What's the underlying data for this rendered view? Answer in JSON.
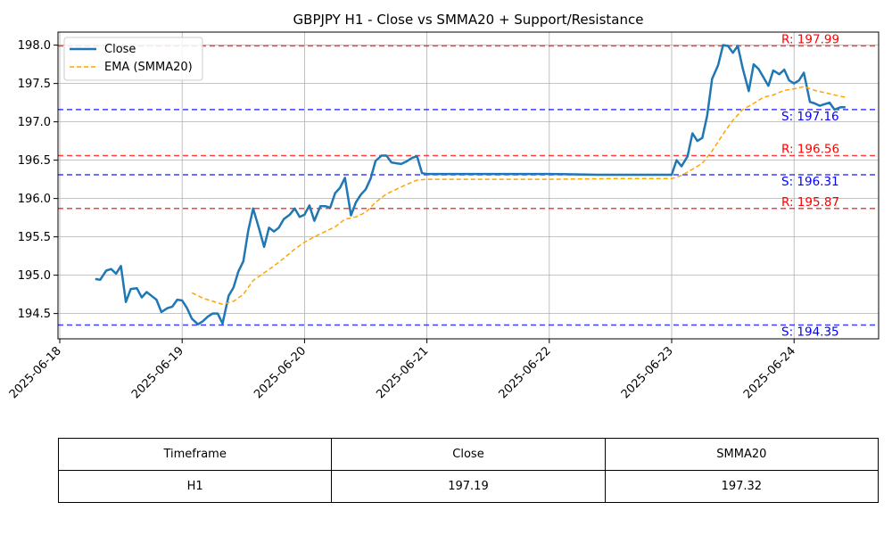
{
  "chart_data": {
    "type": "line",
    "title": "GBPJPY H1 - Close vs SMMA20 + Support/Resistance",
    "xlabel": "",
    "ylabel": "",
    "x_ticks": [
      "2025-06-18",
      "2025-06-19",
      "2025-06-20",
      "2025-06-21",
      "2025-06-22",
      "2025-06-23",
      "2025-06-24"
    ],
    "y_ticks": [
      "194.5",
      "195.0",
      "195.5",
      "196.0",
      "196.5",
      "197.0",
      "197.5",
      "198.0"
    ],
    "xlim": [
      0,
      6.72
    ],
    "ylim": [
      194.17,
      198.17
    ],
    "grid": true,
    "legend_position": "top-left",
    "series": [
      {
        "name": "Close",
        "color": "#1f77b4",
        "style": "solid",
        "points": [
          [
            0.29,
            194.95
          ],
          [
            0.33,
            194.94
          ],
          [
            0.38,
            195.06
          ],
          [
            0.42,
            195.08
          ],
          [
            0.46,
            195.02
          ],
          [
            0.5,
            195.12
          ],
          [
            0.54,
            194.65
          ],
          [
            0.58,
            194.82
          ],
          [
            0.63,
            194.83
          ],
          [
            0.67,
            194.71
          ],
          [
            0.71,
            194.78
          ],
          [
            0.75,
            194.73
          ],
          [
            0.79,
            194.68
          ],
          [
            0.83,
            194.52
          ],
          [
            0.88,
            194.57
          ],
          [
            0.92,
            194.59
          ],
          [
            0.96,
            194.68
          ],
          [
            1.0,
            194.67
          ],
          [
            1.04,
            194.57
          ],
          [
            1.08,
            194.43
          ],
          [
            1.13,
            194.36
          ],
          [
            1.17,
            194.4
          ],
          [
            1.21,
            194.46
          ],
          [
            1.25,
            194.5
          ],
          [
            1.29,
            194.5
          ],
          [
            1.33,
            194.37
          ],
          [
            1.38,
            194.73
          ],
          [
            1.42,
            194.84
          ],
          [
            1.46,
            195.05
          ],
          [
            1.5,
            195.18
          ],
          [
            1.54,
            195.58
          ],
          [
            1.58,
            195.87
          ],
          [
            1.63,
            195.6
          ],
          [
            1.67,
            195.37
          ],
          [
            1.71,
            195.62
          ],
          [
            1.75,
            195.57
          ],
          [
            1.79,
            195.62
          ],
          [
            1.83,
            195.73
          ],
          [
            1.88,
            195.79
          ],
          [
            1.92,
            195.87
          ],
          [
            1.96,
            195.76
          ],
          [
            2.0,
            195.79
          ],
          [
            2.04,
            195.91
          ],
          [
            2.08,
            195.71
          ],
          [
            2.13,
            195.9
          ],
          [
            2.17,
            195.9
          ],
          [
            2.21,
            195.88
          ],
          [
            2.25,
            196.07
          ],
          [
            2.29,
            196.14
          ],
          [
            2.33,
            196.27
          ],
          [
            2.38,
            195.78
          ],
          [
            2.42,
            195.95
          ],
          [
            2.46,
            196.05
          ],
          [
            2.5,
            196.12
          ],
          [
            2.54,
            196.26
          ],
          [
            2.58,
            196.49
          ],
          [
            2.63,
            196.56
          ],
          [
            2.67,
            196.56
          ],
          [
            2.71,
            196.47
          ],
          [
            2.75,
            196.46
          ],
          [
            2.79,
            196.45
          ],
          [
            2.83,
            196.48
          ],
          [
            2.88,
            196.53
          ],
          [
            2.92,
            196.55
          ],
          [
            2.96,
            196.33
          ],
          [
            3.0,
            196.32
          ],
          [
            3.2,
            196.32
          ],
          [
            3.6,
            196.32
          ],
          [
            4.0,
            196.32
          ],
          [
            4.4,
            196.31
          ],
          [
            4.8,
            196.31
          ],
          [
            5.0,
            196.31
          ],
          [
            5.04,
            196.5
          ],
          [
            5.08,
            196.42
          ],
          [
            5.13,
            196.55
          ],
          [
            5.17,
            196.85
          ],
          [
            5.21,
            196.75
          ],
          [
            5.25,
            196.79
          ],
          [
            5.29,
            197.08
          ],
          [
            5.33,
            197.56
          ],
          [
            5.38,
            197.74
          ],
          [
            5.42,
            198.0
          ],
          [
            5.46,
            197.99
          ],
          [
            5.5,
            197.9
          ],
          [
            5.54,
            197.99
          ],
          [
            5.58,
            197.7
          ],
          [
            5.63,
            197.4
          ],
          [
            5.67,
            197.75
          ],
          [
            5.71,
            197.69
          ],
          [
            5.75,
            197.58
          ],
          [
            5.79,
            197.47
          ],
          [
            5.83,
            197.67
          ],
          [
            5.88,
            197.62
          ],
          [
            5.92,
            197.68
          ],
          [
            5.96,
            197.54
          ],
          [
            6.0,
            197.5
          ],
          [
            6.04,
            197.54
          ],
          [
            6.08,
            197.64
          ],
          [
            6.13,
            197.26
          ],
          [
            6.17,
            197.24
          ],
          [
            6.21,
            197.21
          ],
          [
            6.25,
            197.23
          ],
          [
            6.29,
            197.25
          ],
          [
            6.33,
            197.16
          ],
          [
            6.38,
            197.19
          ],
          [
            6.42,
            197.19
          ]
        ]
      },
      {
        "name": "EMA (SMMA20)",
        "color": "#ffa500",
        "style": "dashed",
        "points": [
          [
            1.08,
            194.77
          ],
          [
            1.17,
            194.7
          ],
          [
            1.25,
            194.66
          ],
          [
            1.33,
            194.62
          ],
          [
            1.42,
            194.66
          ],
          [
            1.5,
            194.75
          ],
          [
            1.58,
            194.93
          ],
          [
            1.67,
            195.03
          ],
          [
            1.75,
            195.12
          ],
          [
            1.83,
            195.22
          ],
          [
            1.92,
            195.34
          ],
          [
            2.0,
            195.43
          ],
          [
            2.08,
            195.5
          ],
          [
            2.17,
            195.57
          ],
          [
            2.25,
            195.63
          ],
          [
            2.33,
            195.73
          ],
          [
            2.42,
            195.76
          ],
          [
            2.5,
            195.82
          ],
          [
            2.58,
            195.95
          ],
          [
            2.67,
            196.06
          ],
          [
            2.75,
            196.12
          ],
          [
            2.83,
            196.18
          ],
          [
            2.92,
            196.24
          ],
          [
            3.0,
            196.25
          ],
          [
            3.5,
            196.25
          ],
          [
            4.0,
            196.25
          ],
          [
            4.5,
            196.26
          ],
          [
            5.0,
            196.26
          ],
          [
            5.08,
            196.3
          ],
          [
            5.17,
            196.38
          ],
          [
            5.25,
            196.46
          ],
          [
            5.33,
            196.62
          ],
          [
            5.42,
            196.84
          ],
          [
            5.5,
            197.02
          ],
          [
            5.58,
            197.16
          ],
          [
            5.67,
            197.24
          ],
          [
            5.75,
            197.32
          ],
          [
            5.83,
            197.35
          ],
          [
            5.92,
            197.41
          ],
          [
            6.0,
            197.43
          ],
          [
            6.08,
            197.46
          ],
          [
            6.17,
            197.41
          ],
          [
            6.25,
            197.38
          ],
          [
            6.33,
            197.35
          ],
          [
            6.42,
            197.32
          ]
        ]
      }
    ],
    "levels": [
      {
        "kind": "resistance",
        "value": 197.99,
        "label": "R: 197.99",
        "color": "#ff0000"
      },
      {
        "kind": "support",
        "value": 197.16,
        "label": "S: 197.16",
        "color": "#0000ff"
      },
      {
        "kind": "resistance",
        "value": 196.56,
        "label": "R: 196.56",
        "color": "#ff0000"
      },
      {
        "kind": "support",
        "value": 196.31,
        "label": "S: 196.31",
        "color": "#0000ff"
      },
      {
        "kind": "resistance",
        "value": 195.87,
        "label": "R: 195.87",
        "color": "#ff0000"
      },
      {
        "kind": "support",
        "value": 194.35,
        "label": "S: 194.35",
        "color": "#0000ff"
      }
    ]
  },
  "table": {
    "headers": [
      "Timeframe",
      "Close",
      "SMMA20"
    ],
    "row": [
      "H1",
      "197.19",
      "197.32"
    ]
  }
}
